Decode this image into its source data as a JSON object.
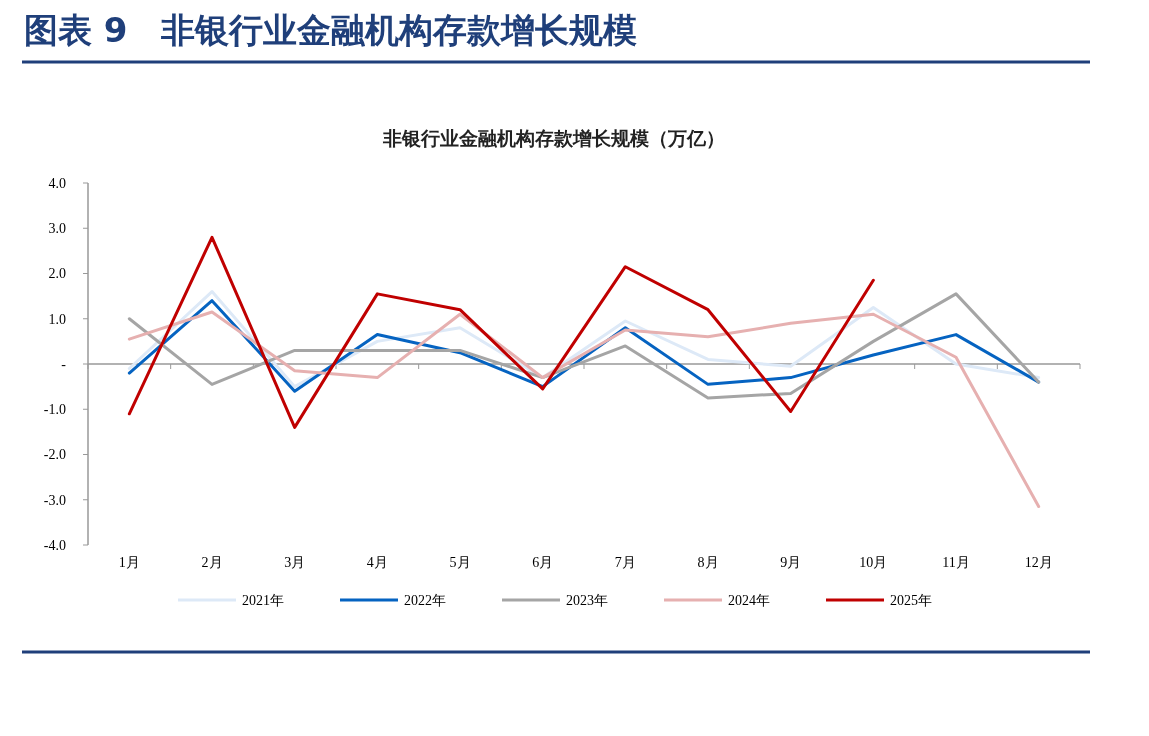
{
  "chart_data": {
    "type": "line",
    "title": "图表 9　非银行业金融机构存款增长规模",
    "subtitle": "非银行业金融机构存款增长规模（万亿）",
    "categories": [
      "1月",
      "2月",
      "3月",
      "4月",
      "5月",
      "6月",
      "7月",
      "8月",
      "9月",
      "10月",
      "11月",
      "12月"
    ],
    "ylim": [
      -4,
      4
    ],
    "yticks": [
      {
        "value": -4,
        "label": "-4.0"
      },
      {
        "value": -3,
        "label": "-3.0"
      },
      {
        "value": -2,
        "label": "-2.0"
      },
      {
        "value": -1,
        "label": "-1.0"
      },
      {
        "value": 0,
        "label": "-"
      },
      {
        "value": 1,
        "label": "1.0"
      },
      {
        "value": 2,
        "label": "2.0"
      },
      {
        "value": 3,
        "label": "3.0"
      },
      {
        "value": 4,
        "label": "4.0"
      }
    ],
    "legend": "bottom",
    "marker": "none",
    "line_style": "solid",
    "series": [
      {
        "name": "2021年",
        "color": "#dde9f7",
        "values": [
          -0.1,
          1.6,
          -0.5,
          0.5,
          0.8,
          -0.3,
          0.95,
          0.1,
          -0.05,
          1.25,
          0.0,
          -0.3
        ]
      },
      {
        "name": "2022年",
        "color": "#0563c1",
        "values": [
          -0.2,
          1.4,
          -0.6,
          0.65,
          0.25,
          -0.5,
          0.8,
          -0.45,
          -0.3,
          0.2,
          0.65,
          -0.4
        ]
      },
      {
        "name": "2023年",
        "color": "#a5a5a5",
        "values": [
          1.0,
          -0.45,
          0.3,
          0.3,
          0.3,
          -0.3,
          0.4,
          -0.75,
          -0.65,
          0.5,
          1.55,
          -0.4
        ]
      },
      {
        "name": "2024年",
        "color": "#e6b0b0",
        "values": [
          0.55,
          1.15,
          -0.15,
          -0.3,
          1.1,
          -0.3,
          0.75,
          0.6,
          0.9,
          1.1,
          0.15,
          -3.15
        ]
      },
      {
        "name": "2025年",
        "color": "#c00000",
        "values": [
          -1.1,
          2.8,
          -1.4,
          1.55,
          1.2,
          -0.55,
          2.15,
          1.2,
          -1.05,
          1.85,
          null,
          null
        ]
      }
    ]
  }
}
